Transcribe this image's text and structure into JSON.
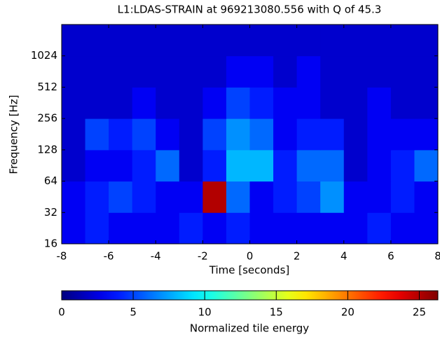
{
  "chart_data": {
    "type": "heatmap",
    "title": "L1:LDAS-STRAIN at 969213080.556 with Q of 45.3",
    "x_label": "Time [seconds]",
    "y_label": "Frequency [Hz]",
    "colorbar_label": "Normalized tile energy",
    "colormap": "jet",
    "ylog": true,
    "xbins": [
      -8,
      -7,
      -6,
      -5,
      -4,
      -3,
      -2,
      -1,
      0,
      1,
      2,
      3,
      4,
      5,
      6,
      7,
      8
    ],
    "ybins": [
      16,
      32,
      64,
      128,
      256,
      512,
      1024,
      2048
    ],
    "z": [
      [
        3,
        4,
        3,
        3,
        3,
        4,
        3,
        4,
        3,
        3,
        3,
        3,
        3,
        4,
        3,
        3
      ],
      [
        3,
        4,
        5,
        4,
        3,
        3,
        25,
        6,
        3,
        4,
        5,
        7,
        3,
        3,
        4,
        3
      ],
      [
        2,
        3,
        3,
        4,
        6,
        2,
        4,
        8,
        8,
        4,
        6,
        6,
        2,
        3,
        4,
        6
      ],
      [
        2,
        5,
        4,
        5,
        3,
        2,
        5,
        7,
        6,
        3,
        4,
        4,
        2,
        3,
        3,
        3
      ],
      [
        2,
        2,
        2,
        3,
        2,
        2,
        3,
        5,
        4,
        3,
        3,
        2,
        2,
        3,
        2,
        2
      ],
      [
        2,
        2,
        2,
        2,
        2,
        2,
        2,
        3,
        3,
        2,
        3,
        2,
        2,
        2,
        2,
        2
      ],
      [
        2,
        2,
        2,
        2,
        2,
        2,
        2,
        2,
        2,
        2,
        2,
        2,
        2,
        2,
        2,
        2
      ]
    ],
    "xlim": [
      -8,
      8
    ],
    "xticks": [
      -8,
      -6,
      -4,
      -2,
      0,
      2,
      4,
      6,
      8
    ],
    "ylim": [
      16,
      2048
    ],
    "yticks": [
      16,
      32,
      64,
      128,
      256,
      512,
      1024
    ],
    "clim": [
      0,
      26.3
    ],
    "cticks": [
      0,
      5,
      10,
      15,
      20,
      25
    ]
  }
}
